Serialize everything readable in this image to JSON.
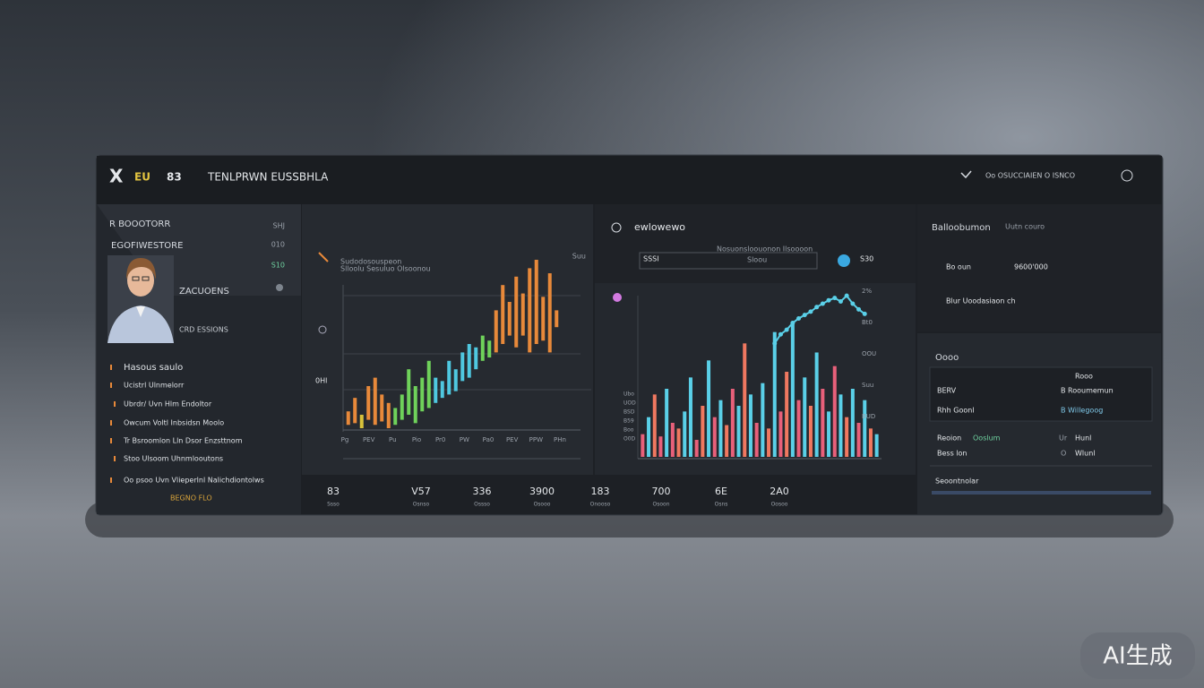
{
  "header": {
    "logo": "X",
    "badge1": "EU",
    "badge2": "83",
    "title": "TENLPRWN EUSSBHLA",
    "status": "Oo OSUCCIAIEN O ISNCO"
  },
  "sidebar": {
    "rows": [
      {
        "label": "R BOOOTORR",
        "value": "SHJ"
      },
      {
        "label": "EGOFIWESTORE",
        "value": "010"
      }
    ],
    "profile": {
      "tag": "S10",
      "name": "ZACUOENS",
      "role": "CRD ESSIONS"
    },
    "menu": [
      "Hasous saulo",
      "Ucistrl Ulnmelorr",
      "Ubrdr/ Uvn Hlm Endoltor",
      "Owcum Voltl Inbsidsn Moolo",
      "Tr Bsroomlon Lln Dsor Enzsttnom",
      "Stoo Ulsoom Uhnmlooutons",
      "Oo psoo Uvn Vlieperlnl Nalichdiontolws"
    ],
    "footer": "BEGNO FLO"
  },
  "chart_data": [
    {
      "type": "candlestick",
      "title": "Sudodosouspeon",
      "subtitle": "Slloolu Sesuluo Olsoonou",
      "corner_label": "Suu",
      "y_label": "0Hl",
      "x_axis_labels": [
        "Pg",
        "PEV",
        "Pu",
        "Pio",
        "Pr0",
        "PW",
        "Pa0",
        "PEV",
        "PPW",
        "PHn"
      ],
      "ylim": [
        0,
        100
      ],
      "lows": [
        2,
        3,
        0,
        5,
        2,
        4,
        0,
        2,
        5,
        8,
        3,
        10,
        12,
        15,
        18,
        20,
        22,
        28,
        30,
        35,
        40,
        42,
        45,
        50,
        55,
        48,
        55,
        45,
        50,
        52,
        45,
        60
      ],
      "highs": [
        10,
        18,
        8,
        25,
        30,
        20,
        15,
        12,
        20,
        35,
        25,
        30,
        40,
        30,
        28,
        40,
        35,
        45,
        50,
        48,
        55,
        52,
        70,
        85,
        75,
        90,
        80,
        95,
        100,
        78,
        92,
        70
      ],
      "colors": [
        "#e8893a",
        "#e8893a",
        "#d8c23a",
        "#e8893a",
        "#e8893a",
        "#e8893a",
        "#e8893a",
        "#6fd25a",
        "#6fd25a",
        "#6fd25a",
        "#6fd25a",
        "#6fd25a",
        "#6fd25a",
        "#4fc8e0",
        "#4fc8e0",
        "#4fc8e0",
        "#4fc8e0",
        "#4fc8e0",
        "#4fc8e0",
        "#4fc8e0",
        "#6fd25a",
        "#6fd25a",
        "#e8893a",
        "#e8893a",
        "#e8893a",
        "#e8893a",
        "#e8893a",
        "#e8893a",
        "#e8893a",
        "#e8893a",
        "#e8893a",
        "#e8893a"
      ]
    },
    {
      "type": "bar",
      "title": "ewlowewo",
      "subtitle": "Nosuonsloouonon Ilsoooon",
      "badge": "SSSI",
      "note": "Sloou",
      "value_tag": "S30",
      "y_labels": [
        "2%",
        "Bt0",
        "OOU",
        "Suu",
        "BUD"
      ],
      "x_axis_labels": [
        "Ubo",
        "UOD",
        "BSD",
        "B59",
        "Boo",
        "O0D"
      ],
      "ylim": [
        0,
        150
      ],
      "values": [
        20,
        35,
        55,
        18,
        60,
        30,
        25,
        40,
        70,
        15,
        45,
        85,
        35,
        50,
        28,
        60,
        45,
        100,
        55,
        30,
        65,
        25,
        110,
        40,
        75,
        118,
        50,
        70,
        45,
        92,
        60,
        40,
        80,
        55,
        35,
        60,
        30,
        50,
        25,
        20
      ],
      "colors": [
        "#e8607a",
        "#5ad0e8",
        "#f07860",
        "#e8607a",
        "#5ad0e8",
        "#e8607a",
        "#f07860",
        "#5ad0e8",
        "#5ad0e8",
        "#e8607a",
        "#f07860",
        "#5ad0e8",
        "#e8607a",
        "#5ad0e8",
        "#f07860",
        "#e8607a",
        "#5ad0e8",
        "#f07860",
        "#5ad0e8",
        "#e8607a",
        "#5ad0e8",
        "#f07860",
        "#5ad0e8",
        "#e8607a",
        "#f07860",
        "#5ad0e8",
        "#e8607a",
        "#5ad0e8",
        "#f07860",
        "#5ad0e8",
        "#e8607a",
        "#5ad0e8",
        "#e8607a",
        "#5ad0e8",
        "#f07860",
        "#5ad0e8",
        "#e8607a",
        "#5ad0e8",
        "#f07860",
        "#5ad0e8"
      ],
      "line": {
        "color": "#5ad0e8",
        "values": [
          null,
          null,
          null,
          null,
          null,
          null,
          null,
          null,
          null,
          null,
          null,
          null,
          null,
          null,
          null,
          null,
          null,
          null,
          null,
          null,
          null,
          null,
          100,
          108,
          112,
          118,
          122,
          125,
          128,
          132,
          135,
          138,
          140,
          137,
          142,
          135,
          130,
          126,
          null,
          null
        ]
      }
    }
  ],
  "stats": [
    {
      "value": "83",
      "label": "Ssso"
    },
    {
      "value": "V57",
      "label": "Osnso"
    },
    {
      "value": "336",
      "label": "Ossso"
    },
    {
      "value": "3900",
      "label": "Osooo"
    },
    {
      "value": "183",
      "label": "Onooso"
    },
    {
      "value": "700",
      "label": "Osoon"
    },
    {
      "value": "6E",
      "label": "Osns"
    },
    {
      "value": "2A0",
      "label": "Oosoo"
    }
  ],
  "right": {
    "title": "Balloobumon",
    "subtitle": "Uutn couro",
    "row1": {
      "label": "Bo oun",
      "value": "9600'000"
    },
    "row2": "Blur Uoodasiaon ch",
    "section": "Oooo",
    "table": {
      "header": "Rooo",
      "rows": [
        [
          "BERV",
          "B Rooumemun"
        ],
        [
          "Rhh Goonl",
          "B Willegoog"
        ]
      ]
    },
    "list": [
      [
        "Reoion",
        "Ooslum",
        "Ur",
        "Hunl"
      ],
      [
        "Bess lon",
        "O",
        "Wlunl"
      ]
    ],
    "footer": "Seoontnolar"
  },
  "watermark": "AI生成"
}
